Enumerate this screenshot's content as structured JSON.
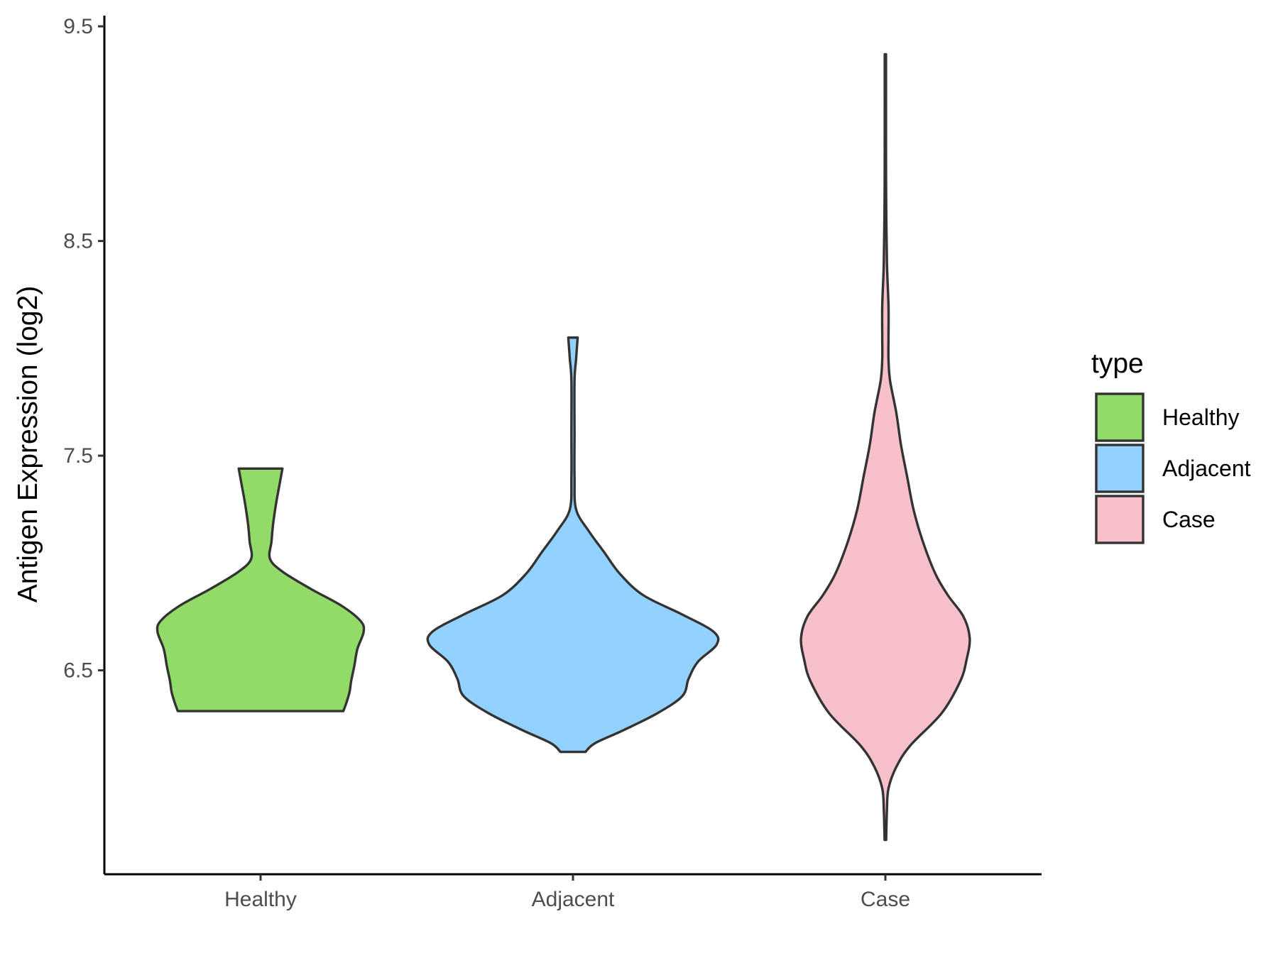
{
  "chart_data": {
    "type": "violin",
    "ylabel": "Antigen Expression (log2)",
    "xlabel": "",
    "ylim": [
      5.55,
      9.55
    ],
    "yticks": [
      6.5,
      7.5,
      8.5,
      9.5
    ],
    "y_tick_labels": [
      "6.5",
      "7.5",
      "8.5",
      "9.5"
    ],
    "categories": [
      "Healthy",
      "Adjacent",
      "Case"
    ],
    "grid": false,
    "legend": {
      "title": "type",
      "position": "right",
      "entries": [
        {
          "label": "Healthy",
          "color": "#93DB69"
        },
        {
          "label": "Adjacent",
          "color": "#93D2FF"
        },
        {
          "label": "Case",
          "color": "#F7C0CB"
        }
      ]
    },
    "series": [
      {
        "category": "Healthy",
        "color": "#93DB69",
        "min": 6.31,
        "max": 7.44,
        "density_profile": [
          [
            6.31,
            0.53
          ],
          [
            6.35,
            0.55
          ],
          [
            6.4,
            0.57
          ],
          [
            6.45,
            0.58
          ],
          [
            6.52,
            0.6
          ],
          [
            6.6,
            0.62
          ],
          [
            6.68,
            0.66
          ],
          [
            6.73,
            0.64
          ],
          [
            6.8,
            0.52
          ],
          [
            6.88,
            0.32
          ],
          [
            6.96,
            0.14
          ],
          [
            7.02,
            0.06
          ],
          [
            7.1,
            0.07
          ],
          [
            7.18,
            0.08
          ],
          [
            7.28,
            0.1
          ],
          [
            7.36,
            0.12
          ],
          [
            7.44,
            0.14
          ]
        ]
      },
      {
        "category": "Adjacent",
        "color": "#93D2FF",
        "min": 6.12,
        "max": 8.05,
        "density_profile": [
          [
            6.12,
            0.08
          ],
          [
            6.16,
            0.14
          ],
          [
            6.22,
            0.32
          ],
          [
            6.3,
            0.54
          ],
          [
            6.38,
            0.7
          ],
          [
            6.46,
            0.74
          ],
          [
            6.54,
            0.8
          ],
          [
            6.62,
            0.92
          ],
          [
            6.68,
            0.9
          ],
          [
            6.76,
            0.7
          ],
          [
            6.85,
            0.45
          ],
          [
            6.95,
            0.3
          ],
          [
            7.05,
            0.2
          ],
          [
            7.15,
            0.1
          ],
          [
            7.25,
            0.02
          ],
          [
            7.4,
            0.01
          ],
          [
            7.6,
            0.01
          ],
          [
            7.85,
            0.01
          ],
          [
            7.95,
            0.02
          ],
          [
            8.05,
            0.03
          ]
        ]
      },
      {
        "category": "Case",
        "color": "#F7C0CB",
        "min": 5.71,
        "max": 9.37,
        "density_profile": [
          [
            5.71,
            0.005
          ],
          [
            5.85,
            0.01
          ],
          [
            5.95,
            0.02
          ],
          [
            6.05,
            0.07
          ],
          [
            6.15,
            0.16
          ],
          [
            6.3,
            0.36
          ],
          [
            6.45,
            0.48
          ],
          [
            6.55,
            0.52
          ],
          [
            6.65,
            0.54
          ],
          [
            6.75,
            0.5
          ],
          [
            6.85,
            0.4
          ],
          [
            6.95,
            0.32
          ],
          [
            7.1,
            0.24
          ],
          [
            7.25,
            0.18
          ],
          [
            7.4,
            0.14
          ],
          [
            7.55,
            0.1
          ],
          [
            7.7,
            0.07
          ],
          [
            7.85,
            0.03
          ],
          [
            7.95,
            0.02
          ],
          [
            8.05,
            0.02
          ],
          [
            8.2,
            0.02
          ],
          [
            8.4,
            0.01
          ],
          [
            8.7,
            0.005
          ],
          [
            9.0,
            0.004
          ],
          [
            9.37,
            0.004
          ]
        ]
      }
    ]
  }
}
